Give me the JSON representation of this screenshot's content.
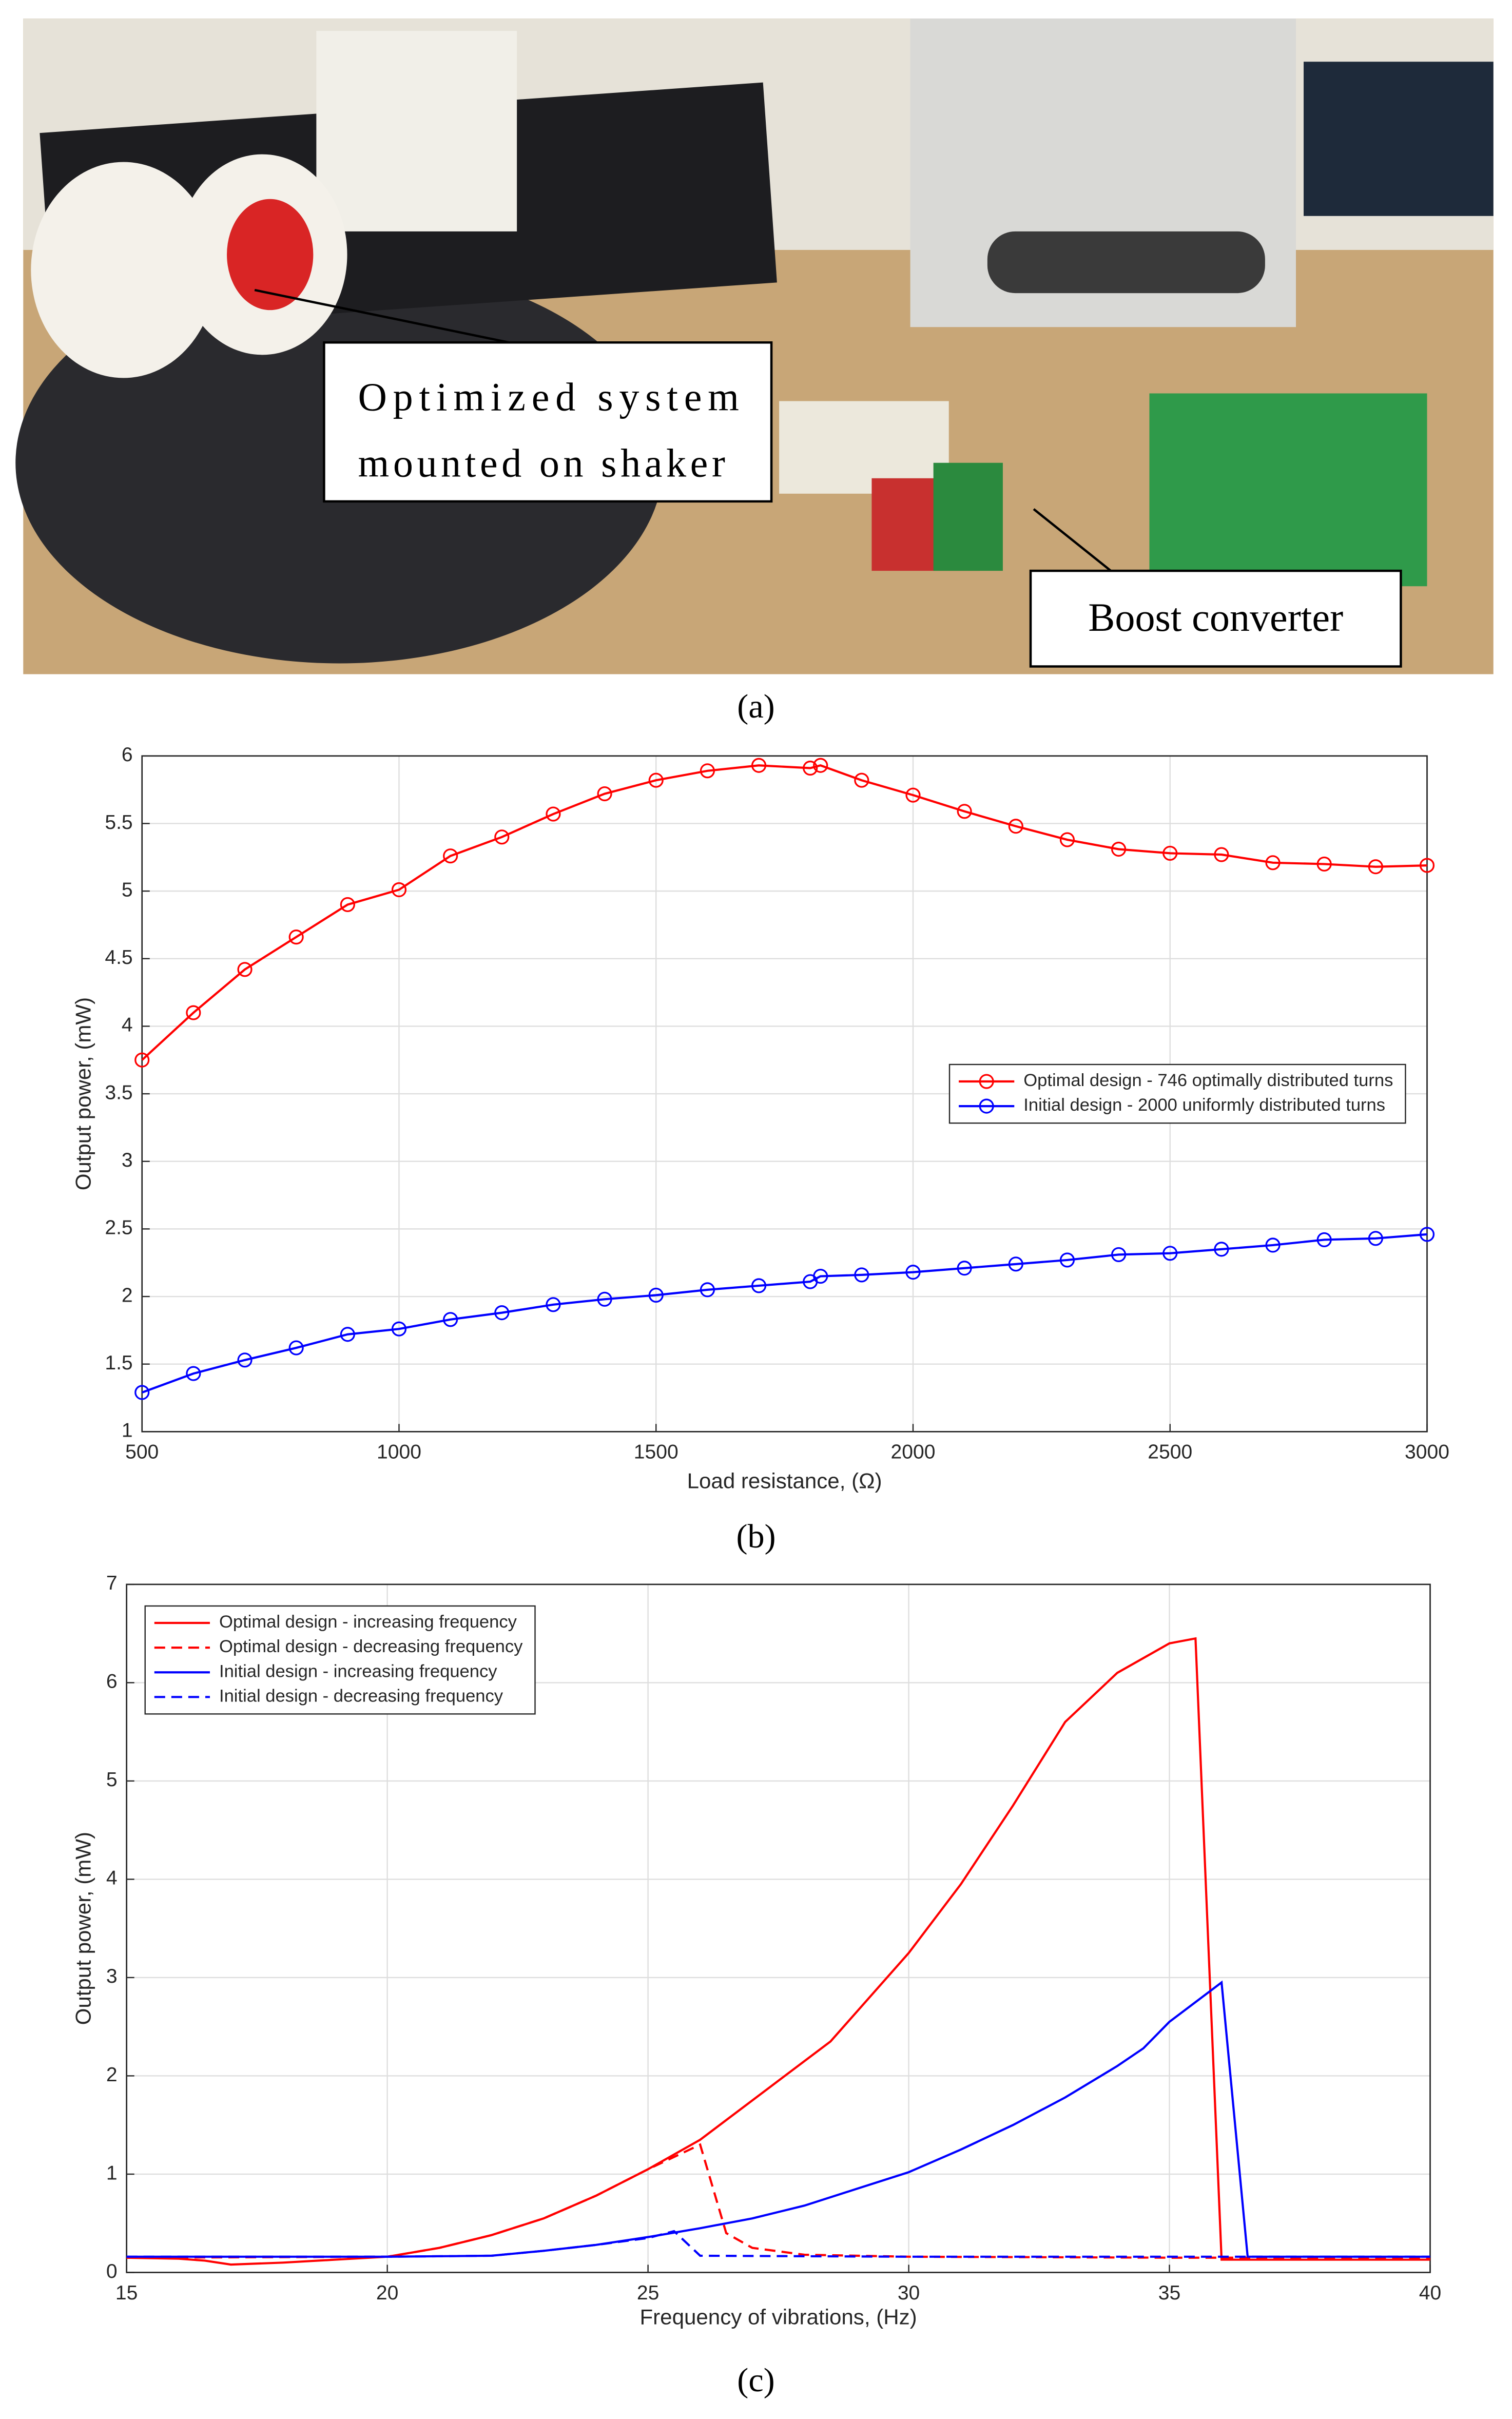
{
  "figure": {
    "label": "(a)",
    "callouts": [
      {
        "lines": [
          "Optimized system",
          "mounted on shaker"
        ]
      },
      {
        "lines": [
          "Boost converter"
        ]
      }
    ]
  },
  "chart_data": [
    {
      "type": "line",
      "label": "(b)",
      "xlabel": "Load resistance, (Ω)",
      "ylabel": "Output power, (mW)",
      "x": [
        500,
        600,
        700,
        800,
        900,
        1000,
        1100,
        1200,
        1300,
        1400,
        1500,
        1600,
        1700,
        1800,
        1820,
        1900,
        2000,
        2100,
        2200,
        2300,
        2400,
        2500,
        2600,
        2700,
        2800,
        2900,
        3000
      ],
      "series": [
        {
          "name": "Optimal design - 746 optimally distributed turns",
          "color": "#ff0000",
          "values": [
            3.75,
            4.1,
            4.42,
            4.66,
            4.9,
            5.01,
            5.26,
            5.4,
            5.57,
            5.72,
            5.82,
            5.89,
            5.93,
            5.91,
            5.93,
            5.82,
            5.71,
            5.59,
            5.48,
            5.38,
            5.31,
            5.28,
            5.27,
            5.21,
            5.2,
            5.18,
            5.19
          ]
        },
        {
          "name": "Initial design - 2000 uniformly distributed turns",
          "color": "#0000ff",
          "values": [
            1.29,
            1.43,
            1.53,
            1.62,
            1.72,
            1.76,
            1.83,
            1.88,
            1.94,
            1.98,
            2.01,
            2.05,
            2.08,
            2.11,
            2.15,
            2.16,
            2.18,
            2.21,
            2.24,
            2.27,
            2.31,
            2.32,
            2.35,
            2.38,
            2.42,
            2.43,
            2.46
          ]
        }
      ],
      "marker": "circle",
      "xlim": [
        500,
        3000
      ],
      "ylim": [
        1,
        6
      ],
      "xticks": [
        500,
        1000,
        1500,
        2000,
        2500,
        3000
      ],
      "yticks": [
        1,
        1.5,
        2,
        2.5,
        3,
        3.5,
        4,
        4.5,
        5,
        5.5,
        6
      ],
      "grid": true,
      "legend": "center right"
    },
    {
      "type": "line",
      "label": "(c)",
      "xlabel": "Frequency of vibrations, (Hz)",
      "ylabel": "Output power, (mW)",
      "series": [
        {
          "name": "Optimal design - increasing frequency",
          "color": "#ff0000",
          "linestyle": "solid",
          "x": [
            15,
            16,
            16.5,
            17,
            18,
            19,
            20,
            21,
            22,
            23,
            24,
            25,
            26,
            27,
            28,
            28.5,
            29,
            30,
            31,
            32,
            33,
            34,
            35,
            35.5,
            36,
            40
          ],
          "values": [
            0.15,
            0.14,
            0.12,
            0.08,
            0.1,
            0.13,
            0.16,
            0.25,
            0.38,
            0.55,
            0.78,
            1.05,
            1.35,
            1.75,
            2.15,
            2.35,
            2.65,
            3.25,
            3.95,
            4.75,
            5.6,
            6.1,
            6.4,
            6.45,
            0.13,
            0.13
          ]
        },
        {
          "name": "Optimal design - decreasing frequency",
          "color": "#ff0000",
          "linestyle": "dashed",
          "x": [
            15,
            20,
            21,
            22,
            23,
            24,
            25,
            26,
            26.5,
            27,
            28,
            30,
            35,
            40
          ],
          "values": [
            0.15,
            0.16,
            0.25,
            0.38,
            0.55,
            0.78,
            1.05,
            1.3,
            0.4,
            0.25,
            0.18,
            0.16,
            0.15,
            0.15
          ]
        },
        {
          "name": "Initial design - increasing frequency",
          "color": "#0000ff",
          "linestyle": "solid",
          "x": [
            15,
            20,
            22,
            23,
            24,
            25,
            26,
            27,
            28,
            29,
            30,
            31,
            32,
            33,
            34,
            34.5,
            35,
            36,
            36.5,
            40
          ],
          "values": [
            0.16,
            0.16,
            0.17,
            0.22,
            0.28,
            0.36,
            0.45,
            0.55,
            0.68,
            0.85,
            1.02,
            1.25,
            1.5,
            1.78,
            2.1,
            2.28,
            2.55,
            2.95,
            0.16,
            0.16
          ]
        },
        {
          "name": "Initial design - decreasing frequency",
          "color": "#0000ff",
          "linestyle": "dashed",
          "x": [
            15,
            20,
            22,
            23,
            24,
            25,
            25.5,
            26,
            30,
            40
          ],
          "values": [
            0.16,
            0.16,
            0.17,
            0.22,
            0.28,
            0.35,
            0.42,
            0.17,
            0.16,
            0.16
          ]
        }
      ],
      "xlim": [
        15,
        40
      ],
      "ylim": [
        0,
        7
      ],
      "xticks": [
        15,
        20,
        25,
        30,
        35,
        40
      ],
      "yticks": [
        0,
        1,
        2,
        3,
        4,
        5,
        6,
        7
      ],
      "grid": true,
      "legend": "upper left"
    }
  ]
}
